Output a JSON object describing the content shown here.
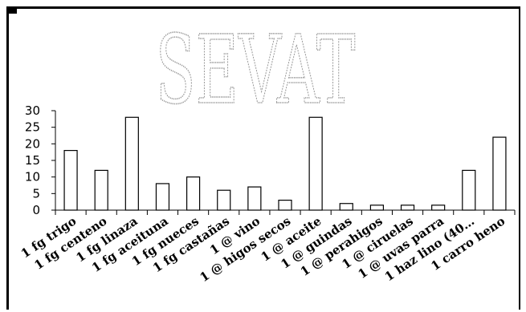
{
  "chart_data": {
    "type": "bar",
    "categories": [
      "1 fg trigo",
      "1 fg centeno",
      "1 fg linaza",
      "1 fg aceituna",
      "1 fg nueces",
      "1 fg castañas",
      "1 @ vino",
      "1 @ higos secos",
      "1 @ aceite",
      "1 @ guindas",
      "1 @ perahigos",
      "1 @ ciruelas",
      "1 @ uvas parra",
      "1 haz lino (40…",
      "1 carro heno"
    ],
    "values": [
      18,
      12,
      28,
      8,
      10,
      6,
      7,
      3,
      28,
      2,
      1.5,
      1.5,
      1.5,
      12,
      22
    ],
    "yticks": [
      "0",
      "5",
      "10",
      "15",
      "20",
      "25",
      "30"
    ],
    "ylim": [
      0,
      30
    ],
    "grid": false,
    "legend": "none",
    "bar_fill": "#ffffff",
    "bar_stroke": "#000000",
    "watermark": "SEVAT"
  }
}
